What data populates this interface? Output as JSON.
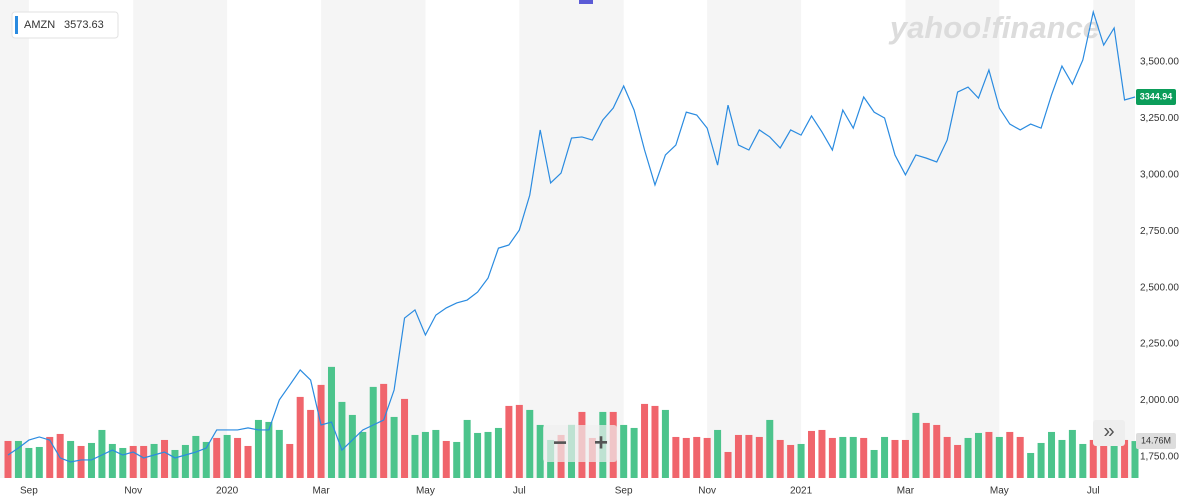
{
  "chart_data": {
    "type": "line",
    "watermark": "yahoo!finance",
    "legend_value": 3573.63,
    "zoom_out": "−",
    "zoom_in": "+",
    "expand": "»",
    "categories": [
      null,
      null,
      "Sep",
      null,
      null,
      null,
      null,
      null,
      null,
      null,
      null,
      null,
      "Nov",
      null,
      null,
      null,
      null,
      null,
      null,
      null,
      null,
      "2020",
      null,
      null,
      null,
      null,
      null,
      null,
      null,
      null,
      "Mar",
      null,
      null,
      null,
      null,
      null,
      null,
      null,
      null,
      null,
      "May",
      null,
      null,
      null,
      null,
      null,
      null,
      null,
      null,
      "Jul",
      null,
      null,
      null,
      null,
      null,
      null,
      null,
      null,
      null,
      "Sep",
      null,
      null,
      null,
      null,
      null,
      null,
      null,
      "Nov",
      null,
      null,
      null,
      null,
      null,
      null,
      null,
      null,
      "2021",
      null,
      null,
      null,
      null,
      null,
      null,
      null,
      null,
      null,
      "Mar",
      null,
      null,
      null,
      null,
      null,
      null,
      null,
      null,
      "May",
      null,
      null,
      null,
      null,
      null,
      null,
      null,
      null,
      "Jul",
      null,
      null,
      null,
      null
    ],
    "series": [
      {
        "name": "AMZN",
        "color": "#2a8be0",
        "values": [
          1758,
          1789,
          1824,
          1838,
          1824,
          1745,
          1727,
          1736,
          1736,
          1758,
          1780,
          1758,
          1771,
          1745,
          1758,
          1771,
          1745,
          1758,
          1771,
          1789,
          1869,
          1869,
          1869,
          1878,
          1869,
          1869,
          2002,
          2068,
          2135,
          2090,
          1891,
          1904,
          1780,
          1824,
          1869,
          1891,
          1913,
          2046,
          2365,
          2401,
          2290,
          2378,
          2410,
          2432,
          2445,
          2480,
          2542,
          2675,
          2689,
          2755,
          2910,
          3199,
          2964,
          3008,
          3163,
          3168,
          3154,
          3243,
          3296,
          3394,
          3287,
          3110,
          2955,
          3088,
          3132,
          3278,
          3265,
          3207,
          3043,
          3309,
          3132,
          3110,
          3199,
          3168,
          3119,
          3199,
          3176,
          3261,
          3190,
          3110,
          3287,
          3207,
          3345,
          3278,
          3252,
          3088,
          3000,
          3088,
          3074,
          3057,
          3154,
          3367,
          3389,
          3340,
          3465,
          3296,
          3225,
          3199,
          3225,
          3207,
          3354,
          3482,
          3402,
          3509,
          3722,
          3575,
          3651,
          3332,
          3344.94
        ]
      }
    ],
    "volume": {
      "last_label": "14.76M",
      "ylim": [
        0,
        191
      ],
      "values": [
        14.8,
        14.8,
        12,
        12.4,
        16.4,
        17.6,
        14.8,
        12.8,
        14,
        19.2,
        13.6,
        12,
        12.8,
        12.8,
        13.6,
        15.2,
        11.2,
        13.2,
        16.8,
        14.4,
        16,
        17.2,
        16,
        12.8,
        23.2,
        22.4,
        19.2,
        13.6,
        32.4,
        27.2,
        37.2,
        44.4,
        30.4,
        25.2,
        18.4,
        36.4,
        37.6,
        24.4,
        31.6,
        17.2,
        18.4,
        19.2,
        14.8,
        14.4,
        23.2,
        18,
        18.4,
        20,
        28.8,
        29.2,
        27.2,
        21.2,
        15.2,
        17.2,
        21.2,
        26.4,
        16,
        26.4,
        26.4,
        21.2,
        20,
        29.6,
        28.8,
        27.2,
        16.4,
        16,
        16.4,
        16,
        19.2,
        10.4,
        17.2,
        17.2,
        16.4,
        23.2,
        15.2,
        13.2,
        13.6,
        18.8,
        19.2,
        16,
        16.4,
        16.4,
        16,
        11.2,
        16.4,
        15.2,
        15.2,
        26,
        22,
        21.2,
        16.4,
        13.2,
        16,
        18,
        18.4,
        16.4,
        18.4,
        16.4,
        10,
        14,
        18.4,
        15.2,
        19.2,
        13.6,
        15.2,
        16.4,
        16.4,
        15.2,
        14.76
      ],
      "colors": [
        "#f0656c",
        "#4cc48c",
        "#4cc48c",
        "#4cc48c",
        "#f0656c",
        "#f0656c",
        "#4cc48c",
        "#f0656c",
        "#4cc48c",
        "#4cc48c",
        "#4cc48c",
        "#4cc48c",
        "#f0656c",
        "#f0656c",
        "#4cc48c",
        "#f0656c",
        "#4cc48c",
        "#4cc48c",
        "#4cc48c",
        "#4cc48c",
        "#f0656c",
        "#4cc48c",
        "#f0656c",
        "#f0656c",
        "#4cc48c",
        "#4cc48c",
        "#4cc48c",
        "#f0656c",
        "#f0656c",
        "#f0656c",
        "#f0656c",
        "#4cc48c",
        "#4cc48c",
        "#4cc48c",
        "#4cc48c",
        "#4cc48c",
        "#f0656c",
        "#4cc48c",
        "#f0656c",
        "#4cc48c",
        "#4cc48c",
        "#4cc48c",
        "#f0656c",
        "#4cc48c",
        "#4cc48c",
        "#4cc48c",
        "#4cc48c",
        "#4cc48c",
        "#f0656c",
        "#f0656c",
        "#4cc48c",
        "#4cc48c",
        "#4cc48c",
        "#f0656c",
        "#4cc48c",
        "#f0656c",
        "#f0656c",
        "#4cc48c",
        "#f0656c",
        "#4cc48c",
        "#4cc48c",
        "#f0656c",
        "#f0656c",
        "#4cc48c",
        "#f0656c",
        "#f0656c",
        "#f0656c",
        "#f0656c",
        "#4cc48c",
        "#f0656c",
        "#f0656c",
        "#f0656c",
        "#f0656c",
        "#4cc48c",
        "#f0656c",
        "#f0656c",
        "#4cc48c",
        "#f0656c",
        "#f0656c",
        "#f0656c",
        "#4cc48c",
        "#4cc48c",
        "#f0656c",
        "#4cc48c",
        "#4cc48c",
        "#f0656c",
        "#f0656c",
        "#4cc48c",
        "#f0656c",
        "#f0656c",
        "#f0656c",
        "#f0656c",
        "#4cc48c",
        "#4cc48c",
        "#f0656c",
        "#4cc48c",
        "#f0656c",
        "#f0656c",
        "#4cc48c",
        "#4cc48c",
        "#4cc48c",
        "#4cc48c",
        "#4cc48c",
        "#4cc48c",
        "#f0656c",
        "#f0656c",
        "#4cc48c",
        "#f0656c",
        "#4cc48c"
      ]
    },
    "ylim": [
      1656,
      3775
    ],
    "yticks": [
      {
        "value": 1750,
        "label": "1,750.00"
      },
      {
        "value": 2000,
        "label": "2,000.00"
      },
      {
        "value": 2250,
        "label": "2,250.00"
      },
      {
        "value": 2500,
        "label": "2,500.00"
      },
      {
        "value": 2750,
        "label": "2,750.00"
      },
      {
        "value": 3000,
        "label": "3,000.00"
      },
      {
        "value": 3250,
        "label": "3,250.00"
      },
      {
        "value": 3500,
        "label": "3,500.00"
      }
    ],
    "grid": false
  }
}
